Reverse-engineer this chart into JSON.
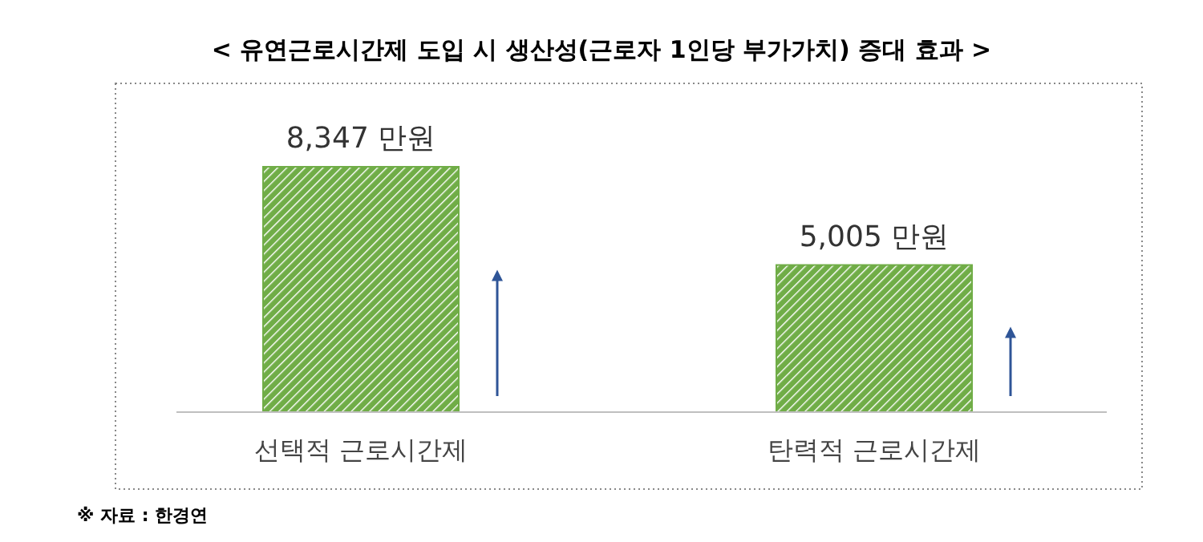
{
  "chart_data": {
    "type": "bar",
    "title": "< 유연근로시간제 도입 시 생산성(근로자 1인당 부가가치) 증대 효과 >",
    "categories": [
      "선택적 근로시간제",
      "탄력적 근로시간제"
    ],
    "values": [
      8347,
      5005
    ],
    "value_labels": [
      "8,347 만원",
      "5,005 만원"
    ],
    "color": "#70ad47",
    "annotations": [
      "※ 자료 : 한경연"
    ]
  }
}
